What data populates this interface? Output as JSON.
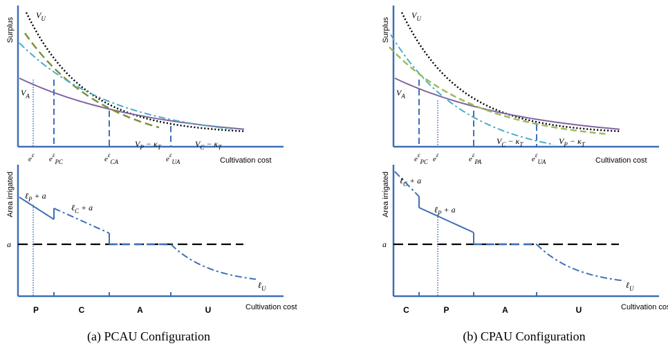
{
  "colors": {
    "axis": "#3d6fb6",
    "V_U": "#000000",
    "V_A": "#8064a2",
    "V_P": "#77933c",
    "V_P_light": "#9bbb59",
    "V_C": "#4bacc6",
    "vline": "#3d6fb6",
    "area": "#3d6fb6",
    "a_line": "#000000"
  },
  "panels": [
    {
      "id": "a",
      "caption": "(a) PCAU Configuration",
      "surplus": {
        "y_label": "Surplus",
        "x_label": "Cultivation cost",
        "labels": {
          "V_U": "V",
          "V_U_sub": "U",
          "V_A": "V",
          "V_A_sub": "A",
          "left_curve": "V",
          "left_curve_sub": "P",
          "left_curve_rest": " − κ",
          "left_curve_rest_sub": "T",
          "right_curve": "V",
          "right_curve_sub": "C",
          "right_curve_rest": " − κ",
          "right_curve_rest_sub": "T"
        },
        "ticks": [
          {
            "base": "e",
            "sup": "ε",
            "sub": "",
            "x": 0.08
          },
          {
            "base": "e",
            "sup": "ε",
            "sub": "PC",
            "x": 0.2
          },
          {
            "base": "e",
            "sup": "ε",
            "sub": "CA",
            "x": 0.42
          },
          {
            "base": "e",
            "sup": "ε",
            "sub": "UA",
            "x": 0.7
          }
        ]
      },
      "area": {
        "y_label": "Area irrigated",
        "x_label": "Cultivation cost",
        "a_label": "a",
        "labels": {
          "first": "ℓ",
          "first_sub": "P",
          "first_rest": " + a",
          "second": "ℓ",
          "second_sub": "C",
          "second_rest": " + a",
          "u": "ℓ",
          "u_sub": "U"
        },
        "regions": [
          "P",
          "C",
          "A",
          "U"
        ]
      }
    },
    {
      "id": "b",
      "caption": "(b) CPAU Configuration",
      "surplus": {
        "y_label": "Surplus",
        "x_label": "Cultivation cost",
        "labels": {
          "V_U": "V",
          "V_U_sub": "U",
          "V_A": "V",
          "V_A_sub": "A",
          "left_curve": "V",
          "left_curve_sub": "C",
          "left_curve_rest": " − κ",
          "left_curve_rest_sub": "T",
          "right_curve": "V",
          "right_curve_sub": "P",
          "right_curve_rest": " − κ",
          "right_curve_rest_sub": "T"
        },
        "ticks": [
          {
            "base": "e",
            "sup": "ε",
            "sub": "PC",
            "x": 0.08
          },
          {
            "base": "e",
            "sup": "ε",
            "sub": "",
            "x": 0.2
          },
          {
            "base": "e",
            "sup": "ε",
            "sub": "PA",
            "x": 0.42
          },
          {
            "base": "e",
            "sup": "ε",
            "sub": "UA",
            "x": 0.7
          }
        ]
      },
      "area": {
        "y_label": "Area irrigated",
        "x_label": "Cultivation cost",
        "a_label": "a",
        "labels": {
          "first": "ℓ",
          "first_sub": "C",
          "first_rest": " + a",
          "second": "ℓ",
          "second_sub": "P",
          "second_rest": " + a",
          "u": "ℓ",
          "u_sub": "U"
        },
        "regions": [
          "C",
          "P",
          "A",
          "U"
        ]
      }
    }
  ]
}
